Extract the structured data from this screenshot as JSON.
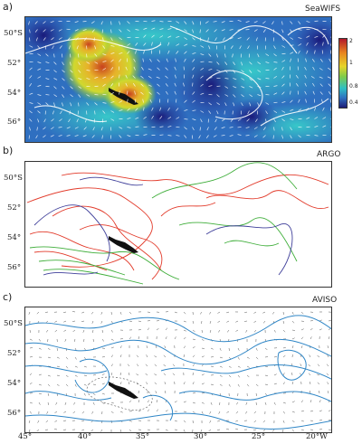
{
  "panels": [
    {
      "letter": "a)",
      "name": "SeaWIFS"
    },
    {
      "letter": "b)",
      "name": "ARGO"
    },
    {
      "letter": "c)",
      "name": "AVISO"
    }
  ],
  "lat_ticks": [
    "50°S",
    "52°",
    "54°",
    "56°"
  ],
  "lon_ticks": [
    "45°",
    "40°",
    "35°",
    "30°",
    "25°",
    "20°W"
  ],
  "colorbar_ticks": [
    "2",
    "1",
    "0.8",
    "0.4"
  ],
  "colors": {
    "argo_red": "#e23a2a",
    "argo_green": "#3fae3a",
    "argo_blue": "#3f3f9a",
    "aviso_blue": "#2f86c6"
  }
}
